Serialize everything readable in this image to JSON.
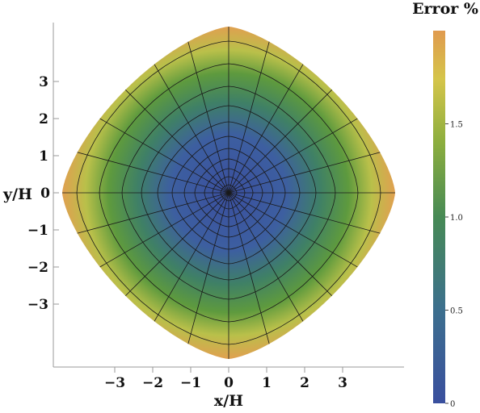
{
  "chart_data": {
    "type": "heatmap",
    "title": "",
    "xlabel": "x/H",
    "ylabel": "y/H",
    "x_ticks": [
      "−3",
      "−2",
      "−1",
      "0",
      "1",
      "2",
      "3"
    ],
    "y_ticks": [
      "3",
      "2",
      "1",
      "0",
      "−1",
      "−2",
      "−3"
    ],
    "x_tick_values": [
      -3,
      -2,
      -1,
      0,
      1,
      2,
      3
    ],
    "y_tick_values": [
      3,
      2,
      1,
      0,
      -1,
      -2,
      -3
    ],
    "xlim": [
      -4.5,
      4.5
    ],
    "ylim": [
      -4.5,
      4.5
    ],
    "domain_shape": "rounded diamond, vertices at (±4.2, 0) and (0, ±4.4)",
    "mesh": "polar mesh centred at (0, 0)",
    "field_description": "error grows from ~0 at centre to ~1.9 at the domain boundary",
    "grid": false,
    "colorbar": {
      "title": "Error %",
      "min": 0,
      "max": 2,
      "ticks": [
        "0",
        "0.5",
        "1.0",
        "1.5"
      ],
      "tick_values": [
        0,
        0.5,
        1.0,
        1.5
      ],
      "colors": [
        "#3a4f9e",
        "#3c6f8e",
        "#478a55",
        "#8cae3e",
        "#d5c54a",
        "#e09a4e"
      ]
    }
  }
}
